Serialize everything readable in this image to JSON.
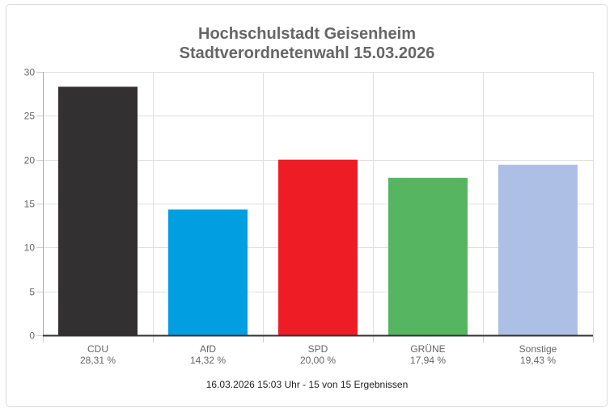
{
  "chart_data": {
    "type": "bar",
    "title": "Hochschulstadt Geisenheim",
    "subtitle": "Stadtverordnetenwahl 15.03.2026",
    "categories": [
      "CDU",
      "AfD",
      "SPD",
      "GRÜNE",
      "Sonstige"
    ],
    "values": [
      28.31,
      14.32,
      20.0,
      17.94,
      19.43
    ],
    "value_labels": [
      "28,31 %",
      "14,32 %",
      "20,00 %",
      "17,94 %",
      "19,43 %"
    ],
    "colors": [
      "#323031",
      "#019ee1",
      "#ee1c25",
      "#56b560",
      "#adbfe5"
    ],
    "ylim": [
      0,
      30
    ],
    "yticks": [
      0,
      5,
      10,
      15,
      20,
      25,
      30
    ],
    "grid": true,
    "xlabel": "",
    "ylabel": ""
  },
  "footer": "16.03.2026 15:03 Uhr - 15 von 15 Ergebnissen"
}
